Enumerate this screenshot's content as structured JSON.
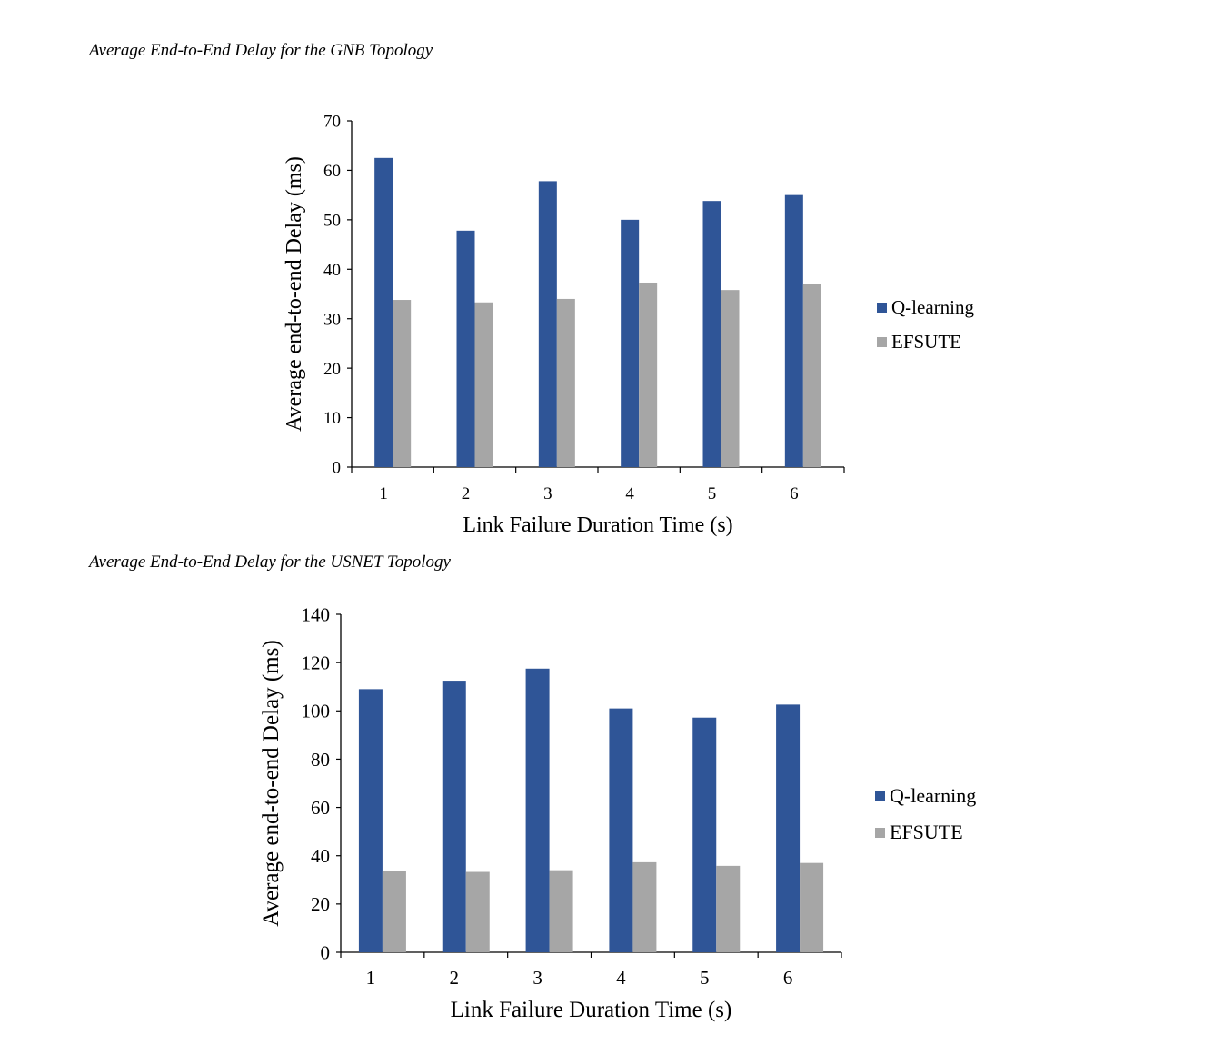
{
  "captions": {
    "gnb": "Average End-to-End Delay for the GNB Topology",
    "usnet": "Average End-to-End Delay for the USNET Topology"
  },
  "colors": {
    "q_learning": "#2f5597",
    "efsute": "#a6a6a6"
  },
  "chart_data": [
    {
      "type": "bar",
      "title": "",
      "categories": [
        "1",
        "2",
        "3",
        "4",
        "5",
        "6"
      ],
      "series": [
        {
          "name": "Q-learning",
          "values": [
            62.5,
            47.8,
            57.8,
            50.0,
            53.8,
            55.0
          ]
        },
        {
          "name": "EFSUTE",
          "values": [
            33.8,
            33.3,
            34.0,
            37.3,
            35.8,
            37.0
          ]
        }
      ],
      "xlabel": "Link Failure Duration Time (s)",
      "ylabel": "Average end-to-end Delay (ms)",
      "ylim": [
        0,
        70
      ],
      "yticks": [
        "0",
        "10",
        "20",
        "30",
        "40",
        "50",
        "60",
        "70"
      ],
      "grid": false,
      "legend": "right"
    },
    {
      "type": "bar",
      "title": "",
      "categories": [
        "1",
        "2",
        "3",
        "4",
        "5",
        "6"
      ],
      "series": [
        {
          "name": "Q-learning",
          "values": [
            109,
            112.5,
            117.5,
            101,
            97.2,
            102.6
          ]
        },
        {
          "name": "EFSUTE",
          "values": [
            33.8,
            33.3,
            34.0,
            37.3,
            35.8,
            37.0
          ]
        }
      ],
      "xlabel": "Link Failure Duration Time (s)",
      "ylabel": "Average end-to-end Delay (ms)",
      "ylim": [
        0,
        140
      ],
      "yticks": [
        "0",
        "20",
        "40",
        "60",
        "80",
        "100",
        "120",
        "140"
      ],
      "grid": false,
      "legend": "right"
    }
  ]
}
